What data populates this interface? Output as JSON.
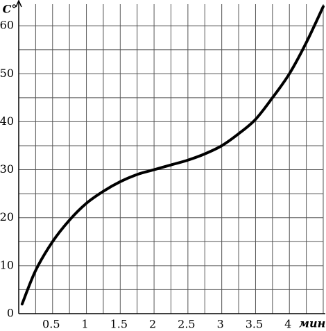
{
  "chart_data": {
    "type": "line",
    "y_label": "C°",
    "x_label": "мин",
    "x": [
      0.05,
      0.25,
      0.5,
      0.75,
      1,
      1.25,
      1.5,
      1.75,
      2,
      2.25,
      2.5,
      2.75,
      3,
      3.25,
      3.5,
      3.75,
      4,
      4.25,
      4.5
    ],
    "values": [
      2,
      9,
      15,
      19.5,
      23,
      25.5,
      27.5,
      29,
      30,
      31,
      32,
      33.3,
      35,
      37.5,
      40.5,
      45,
      50,
      56.5,
      64
    ],
    "color": "#000000",
    "xlim": [
      0,
      4.5
    ],
    "ylim": [
      0,
      64.5
    ],
    "xticks": [
      0.5,
      1,
      1.5,
      2,
      2.5,
      3,
      3.5,
      4
    ],
    "yticks": [
      0,
      10,
      20,
      30,
      40,
      50,
      60
    ],
    "xgrid": [
      0.25,
      0.5,
      0.75,
      1,
      1.25,
      1.5,
      1.75,
      2,
      2.25,
      2.5,
      2.75,
      3,
      3.25,
      3.5,
      3.75,
      4,
      4.25,
      4.5
    ],
    "ygrid": [
      5,
      10,
      15,
      20,
      25,
      30,
      35,
      40,
      45,
      50,
      55,
      60
    ],
    "grid": true
  }
}
